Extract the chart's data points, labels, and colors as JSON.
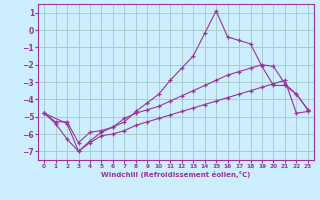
{
  "xlabel": "Windchill (Refroidissement éolien,°C)",
  "background_color": "#cceeff",
  "grid_color": "#aacccc",
  "line_color": "#993399",
  "xlim": [
    -0.5,
    23.5
  ],
  "ylim": [
    -7.5,
    1.5
  ],
  "yticks": [
    1,
    0,
    -1,
    -2,
    -3,
    -4,
    -5,
    -6,
    -7
  ],
  "xticks": [
    0,
    1,
    2,
    3,
    4,
    5,
    6,
    7,
    8,
    9,
    10,
    11,
    12,
    13,
    14,
    15,
    16,
    17,
    18,
    19,
    20,
    21,
    22,
    23
  ],
  "series": [
    {
      "x": [
        0,
        2,
        3,
        4,
        5,
        6,
        7,
        8,
        9,
        10,
        11,
        12,
        13,
        14,
        15,
        16,
        17,
        18,
        19,
        20,
        21,
        22,
        23
      ],
      "y": [
        -4.8,
        -5.4,
        -7.0,
        -6.4,
        -5.9,
        -5.6,
        -5.3,
        -4.7,
        -4.2,
        -3.7,
        -2.9,
        -2.2,
        -1.5,
        -0.2,
        1.1,
        -0.4,
        -0.6,
        -0.8,
        -2.1,
        -3.2,
        -3.2,
        -3.7,
        -4.6
      ]
    },
    {
      "x": [
        0,
        1,
        2,
        3,
        4,
        5,
        6,
        7,
        8,
        9,
        10,
        11,
        12,
        13,
        14,
        15,
        16,
        17,
        18,
        19,
        20,
        21,
        22,
        23
      ],
      "y": [
        -4.8,
        -5.3,
        -5.3,
        -6.5,
        -5.9,
        -5.8,
        -5.6,
        -5.1,
        -4.8,
        -4.6,
        -4.4,
        -4.1,
        -3.8,
        -3.5,
        -3.2,
        -2.9,
        -2.6,
        -2.4,
        -2.2,
        -2.0,
        -2.1,
        -3.1,
        -3.7,
        -4.6
      ]
    },
    {
      "x": [
        0,
        1,
        2,
        3,
        4,
        5,
        6,
        7,
        8,
        9,
        10,
        11,
        12,
        13,
        14,
        15,
        16,
        17,
        18,
        19,
        20,
        21,
        22,
        23
      ],
      "y": [
        -4.8,
        -5.4,
        -6.3,
        -7.0,
        -6.5,
        -6.1,
        -6.0,
        -5.8,
        -5.5,
        -5.3,
        -5.1,
        -4.9,
        -4.7,
        -4.5,
        -4.3,
        -4.1,
        -3.9,
        -3.7,
        -3.5,
        -3.3,
        -3.1,
        -2.9,
        -4.8,
        -4.7
      ]
    }
  ]
}
